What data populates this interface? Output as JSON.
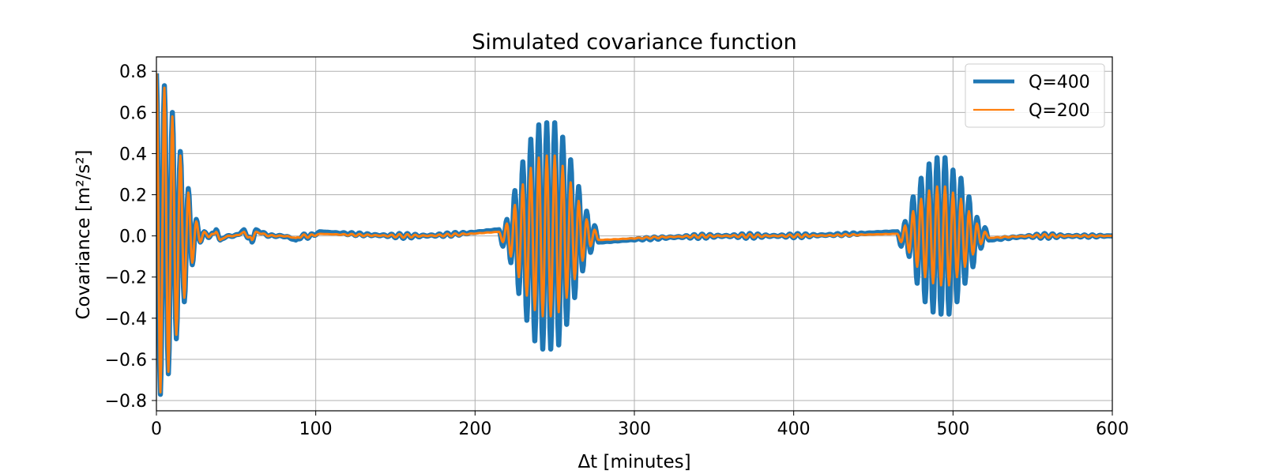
{
  "chart_data": {
    "type": "line",
    "title": "Simulated covariance function",
    "xlabel": "Δt [minutes]",
    "ylabel": "Covariance [m²/s²]",
    "xlim": [
      0,
      600
    ],
    "ylim": [
      -0.85,
      0.87
    ],
    "xticks": [
      0,
      100,
      200,
      300,
      400,
      500,
      600
    ],
    "yticks": [
      -0.8,
      -0.6,
      -0.4,
      -0.2,
      0.0,
      0.2,
      0.4,
      0.6,
      0.8
    ],
    "ytick_labels": [
      "−0.8",
      "−0.6",
      "−0.4",
      "−0.2",
      "0.0",
      "0.2",
      "0.4",
      "0.6",
      "0.8"
    ],
    "grid": true,
    "legend_position": "top-right",
    "colors": {
      "Q=400": "#1f77b4",
      "Q=200": "#ff7f0e"
    },
    "series": [
      {
        "name": "Q=400",
        "color": "#1f77b4",
        "extrema": [
          [
            0.0,
            0.79
          ],
          [
            2.5,
            -0.77
          ],
          [
            5.0,
            0.73
          ],
          [
            7.5,
            -0.67
          ],
          [
            10.0,
            0.6
          ],
          [
            12.5,
            -0.5
          ],
          [
            15.0,
            0.41
          ],
          [
            17.5,
            -0.32
          ],
          [
            20.0,
            0.23
          ],
          [
            22.5,
            -0.14
          ],
          [
            25.0,
            0.08
          ],
          [
            27.5,
            -0.03
          ],
          [
            30.0,
            0.02
          ],
          [
            37.5,
            0.03
          ],
          [
            40.0,
            -0.02
          ],
          [
            55.0,
            0.03
          ],
          [
            60.0,
            -0.03
          ],
          [
            62.5,
            0.03
          ],
          [
            87.5,
            -0.02
          ],
          [
            102.5,
            0.02
          ],
          [
            215.0,
            0.03
          ],
          [
            217.5,
            -0.05
          ],
          [
            220.0,
            0.08
          ],
          [
            222.5,
            -0.13
          ],
          [
            225.0,
            0.22
          ],
          [
            227.5,
            -0.28
          ],
          [
            230.0,
            0.36
          ],
          [
            232.5,
            -0.41
          ],
          [
            235.0,
            0.47
          ],
          [
            237.5,
            -0.51
          ],
          [
            240.0,
            0.54
          ],
          [
            242.5,
            -0.55
          ],
          [
            245.0,
            0.55
          ],
          [
            247.5,
            -0.55
          ],
          [
            250.0,
            0.55
          ],
          [
            252.5,
            -0.53
          ],
          [
            255.0,
            0.48
          ],
          [
            257.5,
            -0.43
          ],
          [
            260.0,
            0.37
          ],
          [
            262.5,
            -0.3
          ],
          [
            265.0,
            0.24
          ],
          [
            267.5,
            -0.17
          ],
          [
            270.0,
            0.12
          ],
          [
            272.5,
            -0.08
          ],
          [
            275.0,
            0.05
          ],
          [
            277.5,
            -0.03
          ],
          [
            465.0,
            0.02
          ],
          [
            467.5,
            -0.05
          ],
          [
            470.0,
            0.07
          ],
          [
            472.5,
            -0.1
          ],
          [
            475.0,
            0.19
          ],
          [
            477.5,
            -0.23
          ],
          [
            480.0,
            0.28
          ],
          [
            482.5,
            -0.32
          ],
          [
            485.0,
            0.35
          ],
          [
            487.5,
            -0.37
          ],
          [
            490.0,
            0.38
          ],
          [
            492.5,
            -0.38
          ],
          [
            495.0,
            0.38
          ],
          [
            497.5,
            -0.38
          ],
          [
            500.0,
            0.32
          ],
          [
            502.5,
            -0.32
          ],
          [
            505.0,
            0.28
          ],
          [
            507.5,
            -0.23
          ],
          [
            510.0,
            0.19
          ],
          [
            512.5,
            -0.15
          ],
          [
            515.0,
            0.09
          ],
          [
            517.5,
            -0.06
          ],
          [
            520.0,
            0.04
          ],
          [
            522.5,
            -0.02
          ],
          [
            600.0,
            0.0
          ]
        ]
      },
      {
        "name": "Q=200",
        "color": "#ff7f0e",
        "extrema": [
          [
            0.0,
            0.79
          ],
          [
            2.5,
            -0.76
          ],
          [
            5.0,
            0.72
          ],
          [
            7.5,
            -0.66
          ],
          [
            10.0,
            0.58
          ],
          [
            12.5,
            -0.48
          ],
          [
            15.0,
            0.39
          ],
          [
            17.5,
            -0.3
          ],
          [
            20.0,
            0.21
          ],
          [
            22.5,
            -0.13
          ],
          [
            25.0,
            0.07
          ],
          [
            27.5,
            -0.03
          ],
          [
            30.0,
            0.02
          ],
          [
            37.5,
            0.02
          ],
          [
            40.0,
            -0.02
          ],
          [
            55.0,
            0.02
          ],
          [
            60.0,
            -0.02
          ],
          [
            62.5,
            0.02
          ],
          [
            87.5,
            -0.01
          ],
          [
            102.5,
            0.01
          ],
          [
            215.0,
            0.02
          ],
          [
            217.5,
            -0.03
          ],
          [
            220.0,
            0.06
          ],
          [
            222.5,
            -0.1
          ],
          [
            225.0,
            0.15
          ],
          [
            227.5,
            -0.2
          ],
          [
            230.0,
            0.25
          ],
          [
            232.5,
            -0.29
          ],
          [
            235.0,
            0.33
          ],
          [
            237.5,
            -0.36
          ],
          [
            240.0,
            0.38
          ],
          [
            242.5,
            -0.39
          ],
          [
            245.0,
            0.39
          ],
          [
            247.5,
            -0.39
          ],
          [
            250.0,
            0.39
          ],
          [
            252.5,
            -0.37
          ],
          [
            255.0,
            0.34
          ],
          [
            257.5,
            -0.3
          ],
          [
            260.0,
            0.26
          ],
          [
            262.5,
            -0.21
          ],
          [
            265.0,
            0.17
          ],
          [
            267.5,
            -0.12
          ],
          [
            270.0,
            0.08
          ],
          [
            272.5,
            -0.05
          ],
          [
            275.0,
            0.03
          ],
          [
            277.5,
            -0.02
          ],
          [
            465.0,
            0.01
          ],
          [
            467.5,
            -0.03
          ],
          [
            470.0,
            0.05
          ],
          [
            472.5,
            -0.08
          ],
          [
            475.0,
            0.12
          ],
          [
            477.5,
            -0.15
          ],
          [
            480.0,
            0.18
          ],
          [
            482.5,
            -0.2
          ],
          [
            485.0,
            0.22
          ],
          [
            487.5,
            -0.23
          ],
          [
            490.0,
            0.24
          ],
          [
            492.5,
            -0.24
          ],
          [
            495.0,
            0.24
          ],
          [
            497.5,
            -0.24
          ],
          [
            500.0,
            0.21
          ],
          [
            502.5,
            -0.2
          ],
          [
            505.0,
            0.18
          ],
          [
            507.5,
            -0.15
          ],
          [
            510.0,
            0.12
          ],
          [
            512.5,
            -0.09
          ],
          [
            515.0,
            0.06
          ],
          [
            517.5,
            -0.04
          ],
          [
            520.0,
            0.02
          ],
          [
            522.5,
            -0.01
          ],
          [
            600.0,
            0.0
          ]
        ]
      }
    ]
  }
}
